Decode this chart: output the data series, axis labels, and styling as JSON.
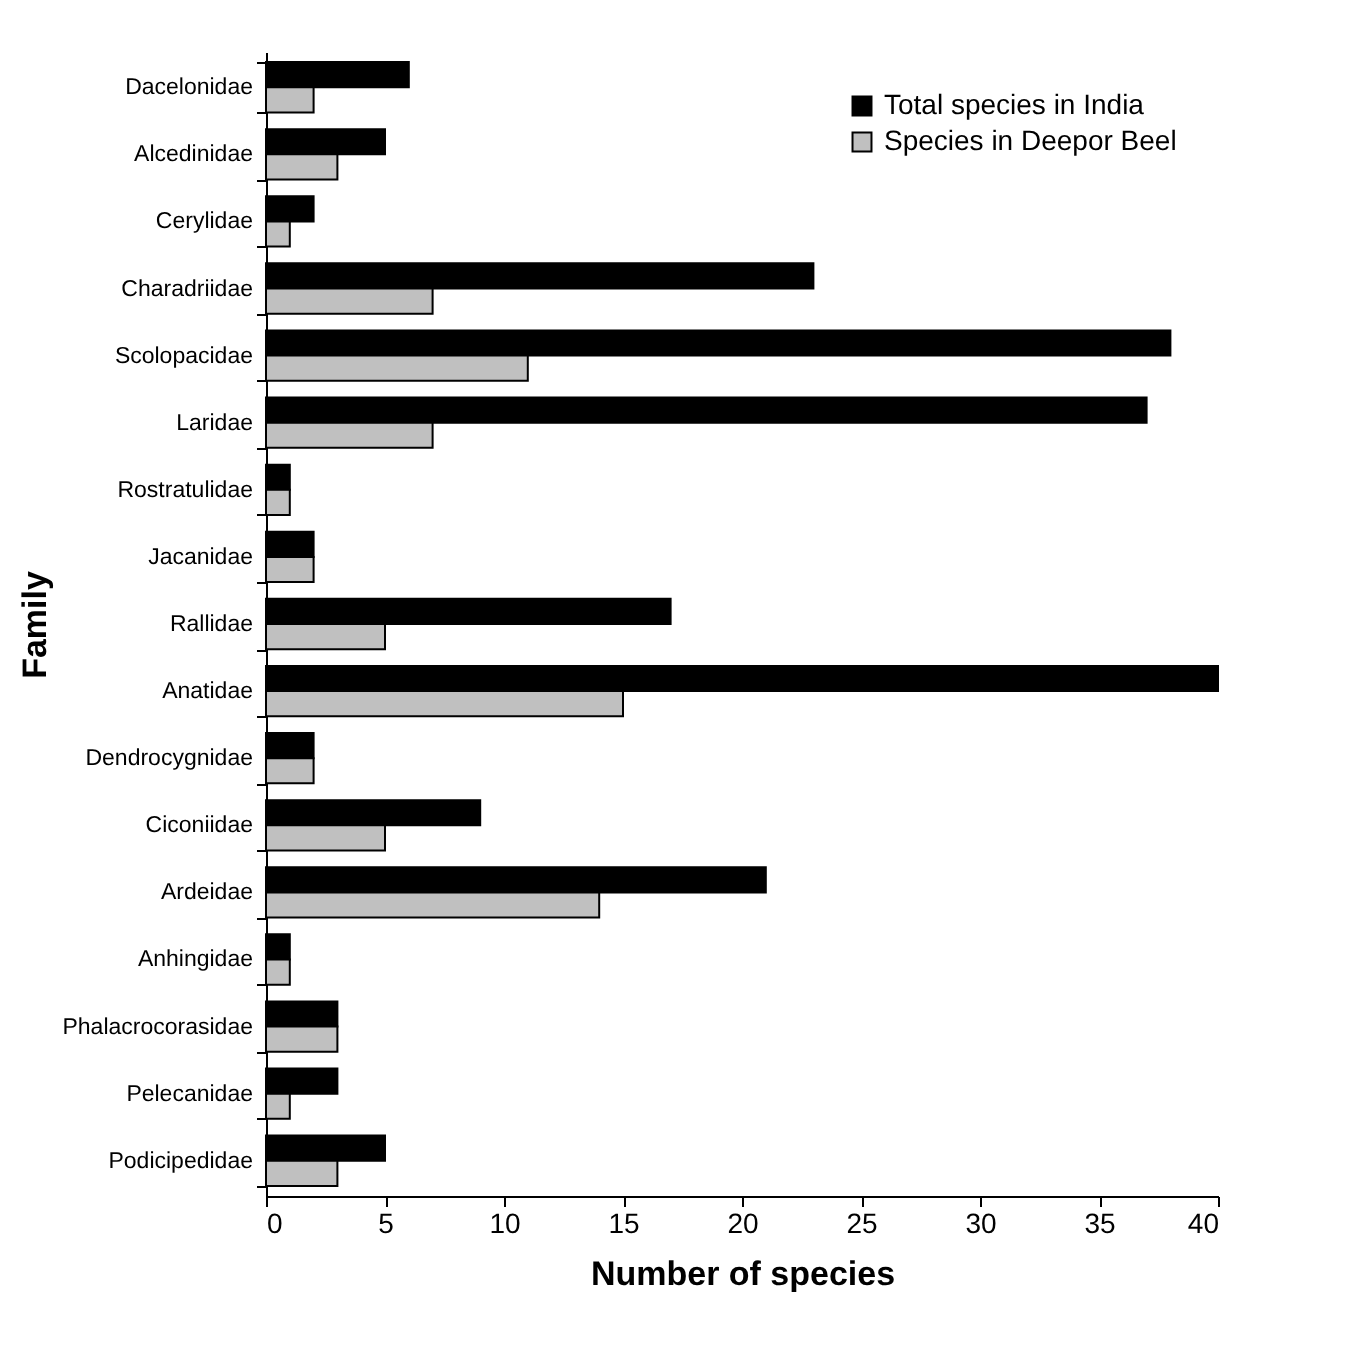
{
  "chart_data": {
    "type": "bar",
    "orientation": "horizontal",
    "xlabel": "Number of species",
    "ylabel": "Family",
    "categories": [
      "Dacelonidae",
      "Alcedinidae",
      "Cerylidae",
      "Charadriidae",
      "Scolopacidae",
      "Laridae",
      "Rostratulidae",
      "Jacanidae",
      "Rallidae",
      "Anatidae",
      "Dendrocygnidae",
      "Ciconiidae",
      "Ardeidae",
      "Anhingidae",
      "Phalacrocorasidae",
      "Pelecanidae",
      "Podicipedidae"
    ],
    "series": [
      {
        "name": "Total species in India",
        "color": "#000000",
        "values": [
          6,
          5,
          2,
          23,
          38,
          37,
          1,
          2,
          17,
          40,
          2,
          9,
          21,
          1,
          3,
          3,
          5
        ]
      },
      {
        "name": "Species in Deepor Beel",
        "color": "#c0c0c0",
        "values": [
          2,
          3,
          1,
          7,
          11,
          7,
          1,
          2,
          5,
          15,
          2,
          5,
          14,
          1,
          3,
          1,
          3
        ]
      }
    ],
    "xlim": [
      0,
      40
    ],
    "xticks": [
      0,
      5,
      10,
      15,
      20,
      25,
      30,
      35,
      40
    ],
    "grid": false,
    "legend": "top right"
  }
}
